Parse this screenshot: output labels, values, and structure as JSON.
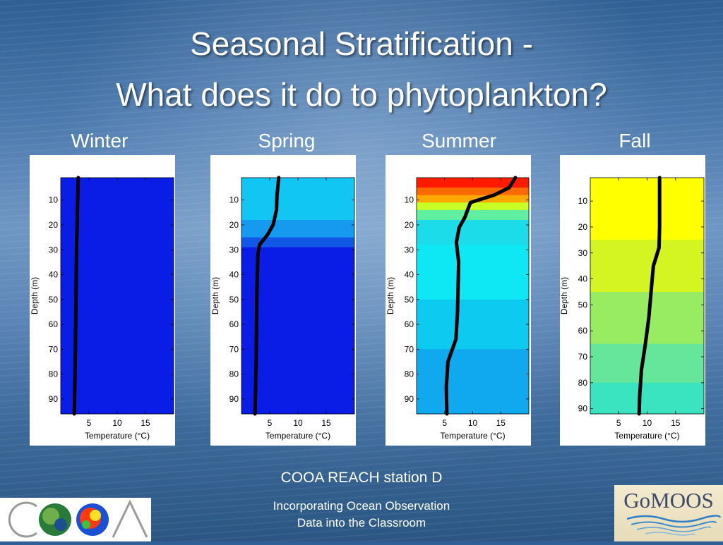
{
  "slide": {
    "title_line1": "Seasonal Stratification  -",
    "title_line2": "What does it do to phytoplankton?",
    "caption": "COOA REACH station D",
    "footer_line1": "Incorporating Ocean Observation",
    "footer_line2": "Data into the Classroom",
    "logo_left_text": "COOA",
    "logo_right_text": "GoMOOS"
  },
  "chart_data": [
    {
      "type": "line",
      "title": "Winter",
      "xlabel": "Temperature (°C)",
      "ylabel": "Depth (m)",
      "xticks": [
        5,
        10,
        15
      ],
      "yticks": [
        10,
        20,
        30,
        40,
        50,
        60,
        70,
        80,
        90
      ],
      "xlim": [
        0,
        20
      ],
      "ylim": [
        1,
        96
      ],
      "y_inverted": true,
      "series": [
        {
          "x": [
            3.1,
            3.0,
            2.9,
            2.8,
            2.7,
            2.6,
            2.5,
            2.4
          ],
          "y": [
            1,
            10,
            20,
            30,
            50,
            70,
            85,
            96
          ]
        }
      ],
      "background_colors": [
        {
          "from": 1,
          "to": 96,
          "color": "#0a1de6"
        }
      ]
    },
    {
      "type": "line",
      "title": "Spring",
      "xlabel": "Temperature (°C)",
      "ylabel": "Depth (m)",
      "xticks": [
        5,
        10,
        15
      ],
      "yticks": [
        10,
        20,
        30,
        40,
        50,
        60,
        70,
        80,
        90
      ],
      "xlim": [
        0,
        20
      ],
      "ylim": [
        1,
        96
      ],
      "y_inverted": true,
      "series": [
        {
          "x": [
            6.6,
            6.3,
            6.2,
            5.6,
            4.6,
            3.2,
            2.9,
            2.7,
            2.6,
            2.4
          ],
          "y": [
            1,
            8,
            14,
            20,
            24,
            28,
            32,
            50,
            75,
            96
          ]
        }
      ],
      "background_colors": [
        {
          "from": 1,
          "to": 18,
          "color": "#12c6f4"
        },
        {
          "from": 18,
          "to": 25,
          "color": "#169af0"
        },
        {
          "from": 25,
          "to": 29,
          "color": "#1258e6"
        },
        {
          "from": 29,
          "to": 96,
          "color": "#0a1de6"
        }
      ]
    },
    {
      "type": "line",
      "title": "Summer",
      "xlabel": "Temperature (°C)",
      "ylabel": "Depth (m)",
      "xticks": [
        5,
        10,
        15
      ],
      "yticks": [
        10,
        20,
        30,
        40,
        50,
        60,
        70,
        80,
        90
      ],
      "xlim": [
        0,
        20
      ],
      "ylim": [
        1,
        96
      ],
      "y_inverted": true,
      "series": [
        {
          "x": [
            17.6,
            16.5,
            13.8,
            9.6,
            9.1,
            8.6,
            7.6,
            7.1,
            7.5,
            7.4,
            7.3,
            7.0,
            5.6,
            5.3,
            5.4
          ],
          "y": [
            1,
            5,
            8,
            11,
            14,
            17,
            21,
            27,
            35,
            45,
            55,
            66,
            75,
            85,
            96
          ]
        }
      ],
      "background_colors": [
        {
          "from": 1,
          "to": 5,
          "color": "#ff1a00"
        },
        {
          "from": 5,
          "to": 8,
          "color": "#ff6a00"
        },
        {
          "from": 8,
          "to": 11,
          "color": "#ffa800"
        },
        {
          "from": 11,
          "to": 14,
          "color": "#c8ff24"
        },
        {
          "from": 14,
          "to": 18,
          "color": "#60f0a0"
        },
        {
          "from": 18,
          "to": 28,
          "color": "#1cdcea"
        },
        {
          "from": 28,
          "to": 50,
          "color": "#0ee8f4"
        },
        {
          "from": 50,
          "to": 70,
          "color": "#0ccaf0"
        },
        {
          "from": 70,
          "to": 96,
          "color": "#10a8ee"
        }
      ]
    },
    {
      "type": "line",
      "title": "Fall",
      "xlabel": "Temperature (°C)",
      "ylabel": "Depth (m)",
      "xticks": [
        5,
        10,
        15
      ],
      "yticks": [
        10,
        20,
        30,
        40,
        50,
        60,
        70,
        80,
        90
      ],
      "xlim": [
        0,
        20
      ],
      "ylim": [
        1,
        92
      ],
      "y_inverted": true,
      "series": [
        {
          "x": [
            12.2,
            12.2,
            12.2,
            12.1,
            11.1,
            10.7,
            10.3,
            9.7,
            9.0,
            8.7,
            8.6
          ],
          "y": [
            1,
            10,
            20,
            28,
            35,
            45,
            55,
            65,
            75,
            85,
            92
          ]
        }
      ],
      "background_colors": [
        {
          "from": 1,
          "to": 25,
          "color": "#ffff00"
        },
        {
          "from": 25,
          "to": 45,
          "color": "#d4f522"
        },
        {
          "from": 45,
          "to": 65,
          "color": "#98ec62"
        },
        {
          "from": 65,
          "to": 80,
          "color": "#66e69a"
        },
        {
          "from": 80,
          "to": 92,
          "color": "#3ae4c0"
        }
      ]
    }
  ]
}
